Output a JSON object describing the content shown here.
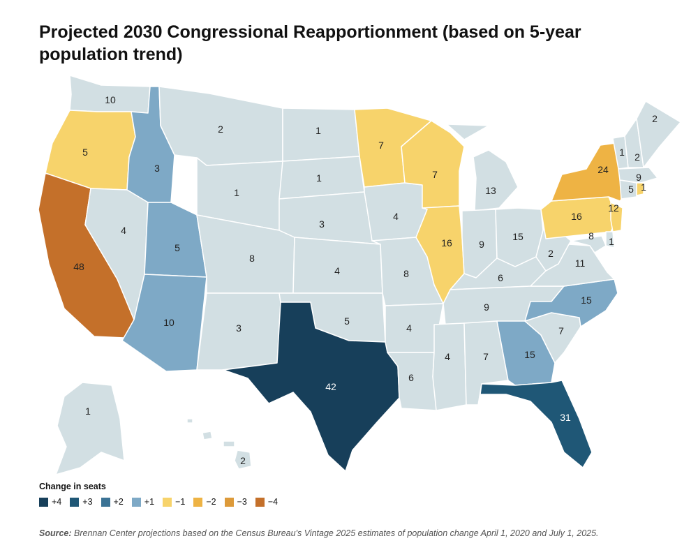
{
  "title": "Projected 2030 Congressional Reapportionment (based on 5-year population trend)",
  "legend": {
    "title": "Change in seats",
    "items": [
      {
        "label": "+4",
        "color": "#173f5a"
      },
      {
        "label": "+3",
        "color": "#1f5776"
      },
      {
        "label": "+2",
        "color": "#3b7395"
      },
      {
        "label": "+1",
        "color": "#7ea9c6"
      },
      {
        "label": "−1",
        "color": "#f7d36b"
      },
      {
        "label": "−2",
        "color": "#eeb344"
      },
      {
        "label": "−3",
        "color": "#dd9a3a"
      },
      {
        "label": "−4",
        "color": "#c4702a"
      }
    ]
  },
  "neutral_color": "#d2dfe3",
  "states": [
    {
      "code": "WA",
      "seats": "10",
      "change": 0
    },
    {
      "code": "OR",
      "seats": "5",
      "change": -1
    },
    {
      "code": "CA",
      "seats": "48",
      "change": -4
    },
    {
      "code": "ID",
      "seats": "3",
      "change": 1
    },
    {
      "code": "NV",
      "seats": "4",
      "change": 0
    },
    {
      "code": "UT",
      "seats": "5",
      "change": 1
    },
    {
      "code": "AZ",
      "seats": "10",
      "change": 1
    },
    {
      "code": "MT",
      "seats": "2",
      "change": 0
    },
    {
      "code": "WY",
      "seats": "1",
      "change": 0
    },
    {
      "code": "CO",
      "seats": "8",
      "change": 0
    },
    {
      "code": "NM",
      "seats": "3",
      "change": 0
    },
    {
      "code": "ND",
      "seats": "1",
      "change": 0
    },
    {
      "code": "SD",
      "seats": "1",
      "change": 0
    },
    {
      "code": "NE",
      "seats": "3",
      "change": 0
    },
    {
      "code": "KS",
      "seats": "4",
      "change": 0
    },
    {
      "code": "OK",
      "seats": "5",
      "change": 0
    },
    {
      "code": "TX",
      "seats": "42",
      "change": 4
    },
    {
      "code": "MN",
      "seats": "7",
      "change": -1
    },
    {
      "code": "IA",
      "seats": "4",
      "change": 0
    },
    {
      "code": "MO",
      "seats": "8",
      "change": 0
    },
    {
      "code": "AR",
      "seats": "4",
      "change": 0
    },
    {
      "code": "LA",
      "seats": "6",
      "change": 0
    },
    {
      "code": "WI",
      "seats": "7",
      "change": -1
    },
    {
      "code": "IL",
      "seats": "16",
      "change": -1
    },
    {
      "code": "MI",
      "seats": "13",
      "change": 0
    },
    {
      "code": "IN",
      "seats": "9",
      "change": 0
    },
    {
      "code": "OH",
      "seats": "15",
      "change": 0
    },
    {
      "code": "KY",
      "seats": "6",
      "change": 0
    },
    {
      "code": "TN",
      "seats": "9",
      "change": 0
    },
    {
      "code": "MS",
      "seats": "4",
      "change": 0
    },
    {
      "code": "AL",
      "seats": "7",
      "change": 0
    },
    {
      "code": "GA",
      "seats": "15",
      "change": 1
    },
    {
      "code": "FL",
      "seats": "31",
      "change": 3
    },
    {
      "code": "SC",
      "seats": "7",
      "change": 0
    },
    {
      "code": "NC",
      "seats": "15",
      "change": 1
    },
    {
      "code": "VA",
      "seats": "11",
      "change": 0
    },
    {
      "code": "WV",
      "seats": "2",
      "change": 0
    },
    {
      "code": "PA",
      "seats": "16",
      "change": -1
    },
    {
      "code": "NY",
      "seats": "24",
      "change": -2
    },
    {
      "code": "VT",
      "seats": "1",
      "change": 0
    },
    {
      "code": "NH",
      "seats": "2",
      "change": 0
    },
    {
      "code": "ME",
      "seats": "2",
      "change": 0
    },
    {
      "code": "MA",
      "seats": "9",
      "change": 0
    },
    {
      "code": "CT",
      "seats": "5",
      "change": 0
    },
    {
      "code": "RI",
      "seats": "1",
      "change": -1
    },
    {
      "code": "NJ",
      "seats": "12",
      "change": -1
    },
    {
      "code": "MD",
      "seats": "8",
      "change": 0
    },
    {
      "code": "DE",
      "seats": "1",
      "change": 0
    },
    {
      "code": "AK",
      "seats": "1",
      "change": 0
    },
    {
      "code": "HI",
      "seats": "2",
      "change": 0
    }
  ],
  "source": {
    "label": "Source:",
    "text": " Brennan Center projections based on the Census Bureau's Vintage 2025 estimates of population change April 1, 2020  and July 1, 2025."
  }
}
